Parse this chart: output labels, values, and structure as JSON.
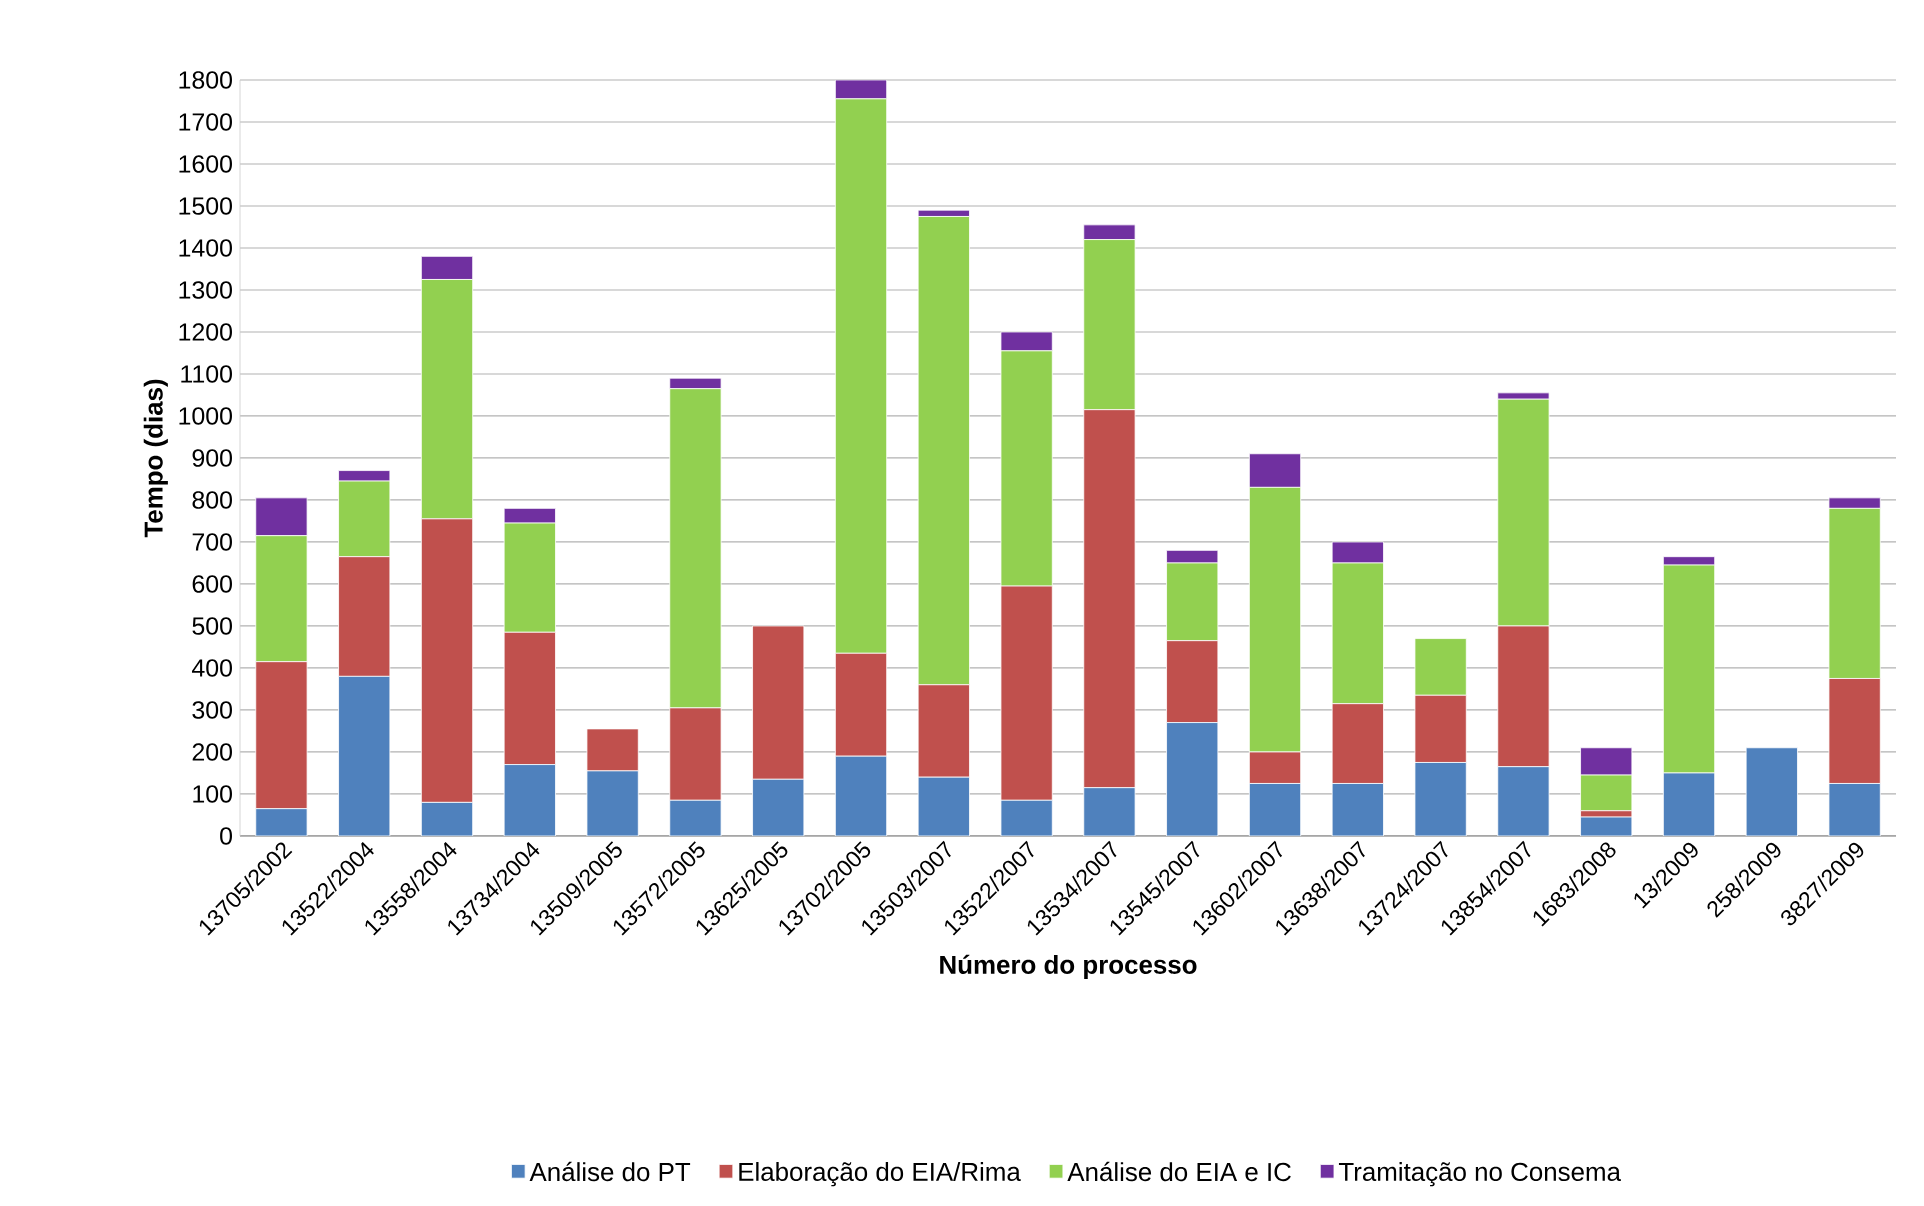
{
  "chart_data": {
    "type": "bar",
    "stacked": true,
    "xlabel": "Número do processo",
    "ylabel": "Tempo (dias)",
    "categories": [
      "13705/2002",
      "13522/2004",
      "13558/2004",
      "13734/2004",
      "13509/2005",
      "13572/2005",
      "13625/2005",
      "13702/2005",
      "13503/2007",
      "13522/2007",
      "13534/2007",
      "13545/2007",
      "13602/2007",
      "13638/2007",
      "13724/2007",
      "13854/2007",
      "1683/2008",
      "13/2009",
      "258/2009",
      "3827/2009"
    ],
    "series": [
      {
        "name": "Análise do PT",
        "color": "#4f81bd",
        "values": [
          65,
          380,
          80,
          170,
          155,
          85,
          135,
          190,
          140,
          85,
          115,
          270,
          125,
          125,
          175,
          165,
          45,
          150,
          210,
          125
        ]
      },
      {
        "name": "Elaboração do EIA/Rima",
        "color": "#c0504d",
        "values": [
          350,
          285,
          675,
          315,
          100,
          220,
          365,
          245,
          220,
          510,
          900,
          195,
          75,
          190,
          160,
          335,
          15,
          0,
          0,
          250
        ]
      },
      {
        "name": "Análise do EIA e IC",
        "color": "#92d050",
        "values": [
          300,
          180,
          570,
          260,
          0,
          760,
          0,
          1320,
          1115,
          560,
          405,
          185,
          630,
          335,
          135,
          540,
          85,
          495,
          0,
          405
        ]
      },
      {
        "name": "Tramitação no Consema",
        "color": "#7030a0",
        "values": [
          90,
          25,
          55,
          35,
          0,
          25,
          0,
          45,
          15,
          45,
          35,
          30,
          80,
          50,
          0,
          15,
          65,
          20,
          0,
          25
        ]
      }
    ],
    "ylim": [
      0,
      1800
    ],
    "yticks": [
      0,
      100,
      200,
      300,
      400,
      500,
      600,
      700,
      800,
      900,
      1000,
      1100,
      1200,
      1300,
      1400,
      1500,
      1600,
      1700,
      1800
    ],
    "grid": "y",
    "legend": "bottom"
  }
}
